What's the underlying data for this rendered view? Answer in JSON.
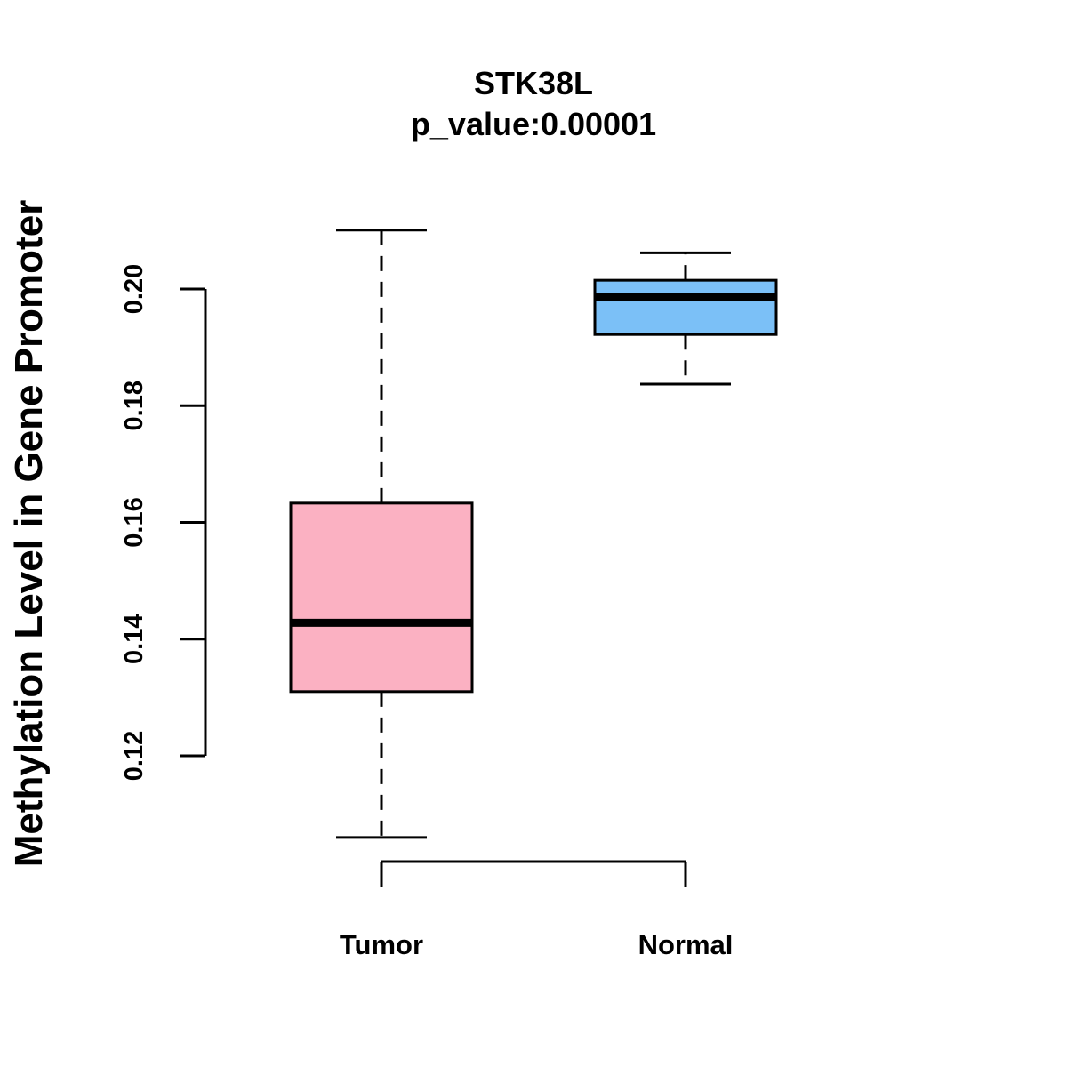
{
  "chart_data": {
    "type": "boxplot",
    "title": "STK38L",
    "subtitle": "p_value:0.00001",
    "xlabel": "",
    "ylabel": "Methylation Level in Gene Promoter",
    "ylim": [
      0.12,
      0.2
    ],
    "yticks": [
      0.12,
      0.14,
      0.16,
      0.18,
      0.2
    ],
    "ytick_labels": [
      "0.12",
      "0.14",
      "0.16",
      "0.18",
      "0.20"
    ],
    "categories": [
      "Tumor",
      "Normal"
    ],
    "series": [
      {
        "name": "Tumor",
        "color": "#FBB1C2",
        "whisker_low": 0.106,
        "q1": 0.131,
        "median": 0.1428,
        "q3": 0.1633,
        "whisker_high": 0.2101
      },
      {
        "name": "Normal",
        "color": "#7BC0F7",
        "whisker_low": 0.1837,
        "q1": 0.1922,
        "median": 0.1986,
        "q3": 0.2015,
        "whisker_high": 0.2062
      }
    ]
  }
}
